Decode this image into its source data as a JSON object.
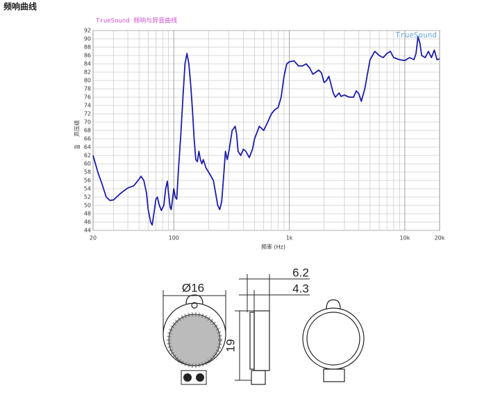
{
  "header": {
    "title": "频响曲线"
  },
  "chart_data": {
    "type": "line",
    "title": "TrueSound 频响与异音曲线",
    "watermark": "TrueSound",
    "xlabel": "频率 (Hz)",
    "ylabel": "声压级",
    "yunit": "dB",
    "log_x": true,
    "grid": true,
    "color": "#1c1ca8",
    "xlim": [
      20,
      20000
    ],
    "ylim": [
      44,
      92
    ],
    "xticks": [
      20,
      100,
      {
        "value": 1000,
        "label": "1k"
      },
      {
        "value": 10000,
        "label": "10k"
      },
      {
        "value": 20000,
        "label": "20k"
      }
    ],
    "xminor": [
      30,
      40,
      50,
      60,
      70,
      80,
      90,
      200,
      300,
      400,
      500,
      600,
      700,
      800,
      900,
      2000,
      3000,
      4000,
      5000,
      6000,
      7000,
      8000,
      9000
    ],
    "yticks": [
      44,
      46,
      48,
      50,
      52,
      54,
      56,
      58,
      60,
      62,
      64,
      66,
      68,
      70,
      72,
      74,
      76,
      78,
      80,
      82,
      84,
      86,
      88,
      90,
      92
    ],
    "x": [
      20,
      22,
      24,
      26,
      28,
      30,
      35,
      40,
      45,
      50,
      52,
      55,
      58,
      60,
      63,
      65,
      68,
      70,
      72,
      75,
      78,
      82,
      85,
      88,
      90,
      93,
      95,
      98,
      100,
      103,
      106,
      110,
      115,
      120,
      125,
      130,
      135,
      140,
      145,
      150,
      155,
      160,
      165,
      170,
      175,
      180,
      190,
      200,
      210,
      220,
      230,
      240,
      250,
      260,
      270,
      280,
      290,
      300,
      320,
      340,
      350,
      360,
      380,
      400,
      420,
      450,
      480,
      500,
      550,
      600,
      650,
      700,
      750,
      800,
      850,
      900,
      950,
      1000,
      1100,
      1200,
      1300,
      1400,
      1500,
      1600,
      1700,
      1800,
      1900,
      2000,
      2100,
      2200,
      2300,
      2400,
      2500,
      2700,
      2800,
      3000,
      3300,
      3600,
      3800,
      4000,
      4200,
      4500,
      5000,
      5500,
      6000,
      6500,
      7000,
      7500,
      8000,
      9000,
      10000,
      11000,
      12000,
      12500,
      13000,
      13500,
      14000,
      15000,
      16000,
      17000,
      18000,
      19000,
      20000
    ],
    "values": [
      62,
      58,
      55,
      52,
      51.2,
      51.3,
      53,
      54.2,
      54.7,
      56.3,
      57,
      56,
      53,
      49,
      46,
      45.3,
      49,
      51.5,
      52,
      50,
      48.8,
      50,
      54,
      55.8,
      53,
      49.5,
      49,
      52,
      54,
      52,
      51.5,
      59,
      67,
      76,
      84,
      86.5,
      84,
      79,
      73,
      66,
      61,
      60.5,
      63,
      61,
      60,
      61,
      59,
      58,
      57,
      56,
      53,
      50,
      49,
      51,
      57,
      63,
      61,
      63,
      68,
      69,
      67,
      63,
      62,
      63.5,
      63,
      61.5,
      63.5,
      66,
      69,
      68,
      70,
      72,
      73,
      73.5,
      76,
      81,
      84,
      84.5,
      84.7,
      83.5,
      83.5,
      84,
      83,
      81.5,
      82,
      82.5,
      81.8,
      79.5,
      80,
      81,
      79,
      77,
      76,
      77,
      76.2,
      76.5,
      76,
      76,
      77.5,
      76.8,
      75,
      78,
      85,
      87,
      86,
      85.5,
      86.5,
      87,
      85.5,
      85,
      84.8,
      85.5,
      85,
      86.5,
      90.5,
      89,
      86,
      85.5,
      87,
      85.5,
      87.3,
      85,
      85.2
    ]
  },
  "drawing": {
    "diameter": "Ø16",
    "depth_total": "6.2",
    "depth_body": "4.3",
    "height": "19"
  }
}
